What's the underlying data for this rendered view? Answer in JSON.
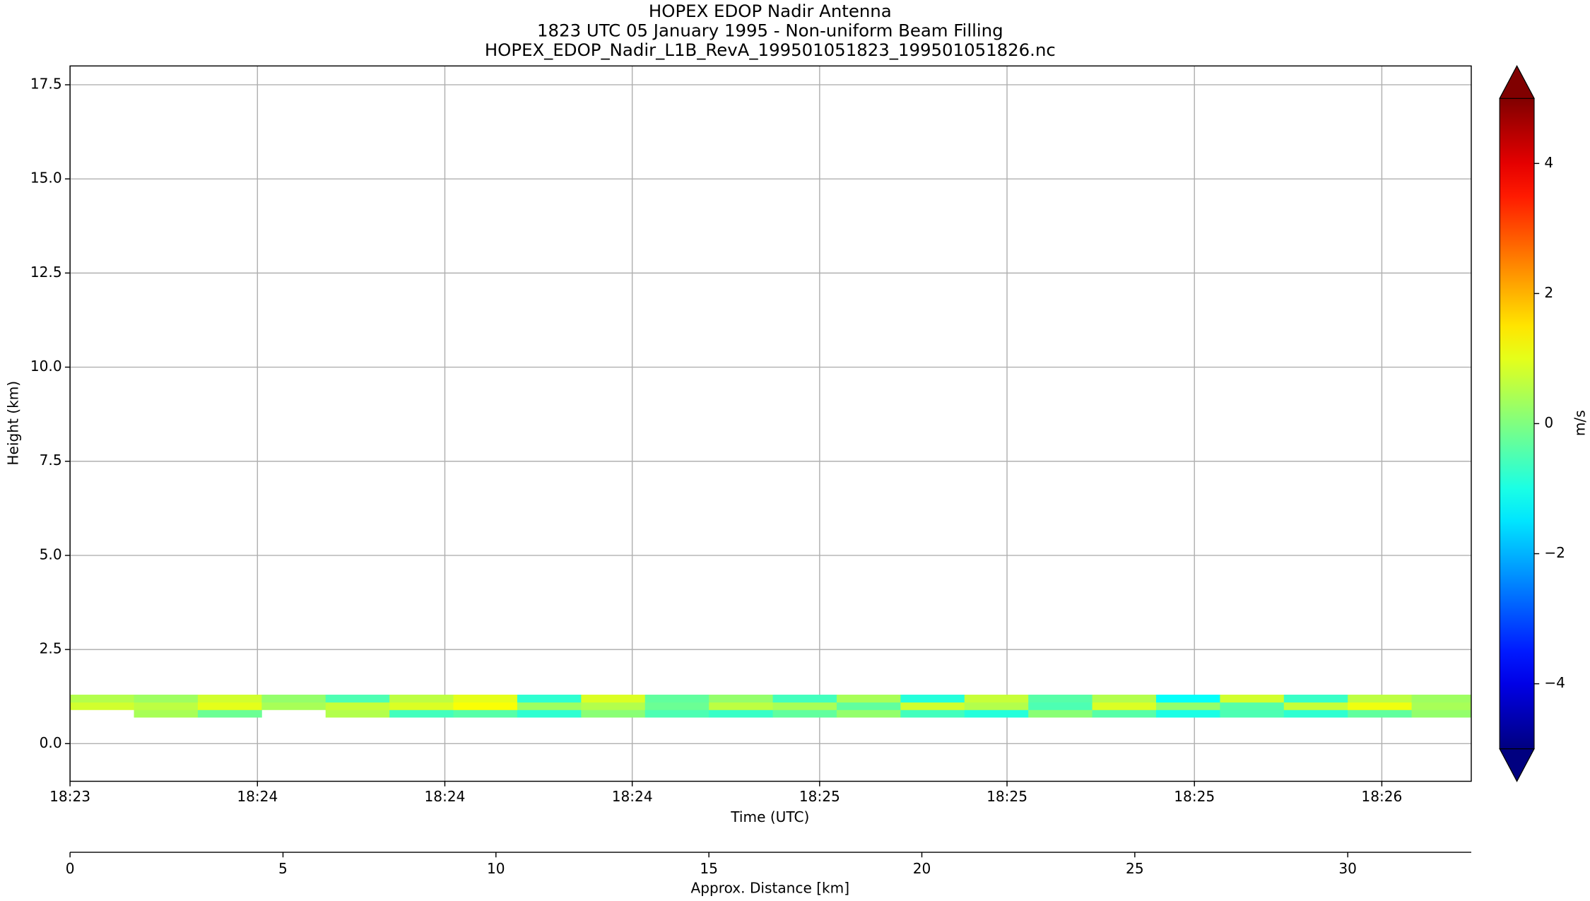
{
  "chart_data": {
    "type": "heatmap",
    "title": "HOPEX EDOP Nadir Antenna",
    "subtitle": "1823 UTC 05 January 1995 - Non-uniform Beam Filling",
    "source_file": "HOPEX_EDOP_Nadir_L1B_RevA_199501051823_199501051826.nc",
    "xlabel": "Time (UTC)",
    "ylabel": "Height (km)",
    "x2label": "Approx. Distance [km]",
    "xlim": [
      0,
      32.9
    ],
    "ylim": [
      -1,
      18
    ],
    "xticks": [
      {
        "value": 0,
        "label": "18:23"
      },
      {
        "value": 4.4,
        "label": "18:24"
      },
      {
        "value": 8.8,
        "label": "18:24"
      },
      {
        "value": 13.2,
        "label": "18:24"
      },
      {
        "value": 17.6,
        "label": "18:25"
      },
      {
        "value": 22.0,
        "label": "18:25"
      },
      {
        "value": 26.4,
        "label": "18:25"
      },
      {
        "value": 30.8,
        "label": "18:26"
      }
    ],
    "yticks": [
      {
        "value": 0,
        "label": "0.0"
      },
      2.5,
      {
        "value": 5,
        "label": "5.0"
      },
      7.5,
      {
        "value": 10,
        "label": "10.0"
      },
      12.5,
      {
        "value": 15,
        "label": "15.0"
      },
      17.5
    ],
    "x2ticks": [
      0,
      5,
      10,
      15,
      20,
      25,
      30
    ],
    "grid": true,
    "colormap": "jet",
    "xbins": [
      0,
      1.5,
      3,
      4.5,
      6,
      7.5,
      9,
      10.5,
      12,
      13.5,
      15,
      16.5,
      18,
      19.5,
      21,
      22.5,
      24,
      25.5,
      27,
      28.5,
      30,
      31.5,
      33
    ],
    "ybins": [
      0.7,
      0.9,
      1.1,
      1.3
    ],
    "z": [
      [
        null,
        0.4,
        -0.2,
        null,
        0.5,
        -0.6,
        -0.4,
        -0.8,
        0.1,
        -0.5,
        -0.7,
        -0.3,
        0.2,
        -0.6,
        -0.9,
        0.1,
        -0.4,
        -1.0,
        -0.5,
        -0.8,
        -0.3,
        0.2
      ],
      [
        0.8,
        0.6,
        1.0,
        0.4,
        0.7,
        0.9,
        1.2,
        0.3,
        0.5,
        -0.2,
        0.6,
        0.4,
        -0.3,
        0.8,
        0.5,
        -0.5,
        0.9,
        0.2,
        -0.4,
        0.7,
        1.1,
        0.4
      ],
      [
        0.5,
        0.3,
        0.8,
        0.2,
        -0.5,
        0.6,
        1.0,
        -0.8,
        0.9,
        -0.3,
        0.2,
        -0.6,
        0.4,
        -0.9,
        0.7,
        -0.4,
        0.5,
        -1.2,
        0.8,
        -0.7,
        0.6,
        0.3
      ]
    ],
    "colorbar": {
      "label": "m/s",
      "lim": [
        -5,
        5
      ],
      "ticks": [
        {
          "value": -4,
          "label": "−4"
        },
        {
          "value": -2,
          "label": "−2"
        },
        0,
        2,
        4
      ]
    }
  }
}
